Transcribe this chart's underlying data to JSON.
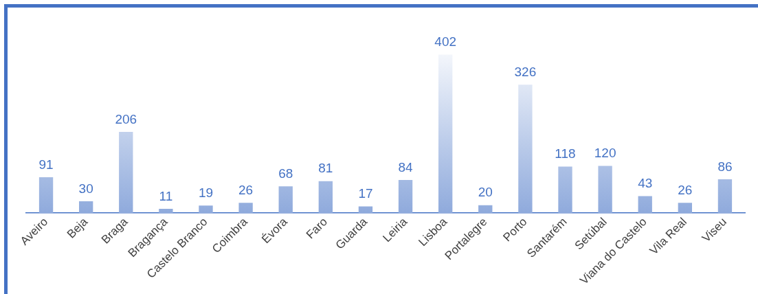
{
  "chart_data": {
    "type": "bar",
    "data_labels": true,
    "legend": false,
    "grid": false,
    "categories": [
      "Aveiro",
      "Beja",
      "Braga",
      "Bragança",
      "Castelo Branco",
      "Coimbra",
      "Évora",
      "Faro",
      "Guarda",
      "Leiria",
      "Lisboa",
      "Portalegre",
      "Porto",
      "Santarém",
      "Setúbal",
      "Viana do Castelo",
      "Vila Real",
      "Viseu"
    ],
    "values": [
      91,
      30,
      206,
      11,
      19,
      26,
      68,
      81,
      17,
      84,
      402,
      20,
      326,
      118,
      120,
      43,
      26,
      86
    ],
    "color": "#8faadc"
  }
}
